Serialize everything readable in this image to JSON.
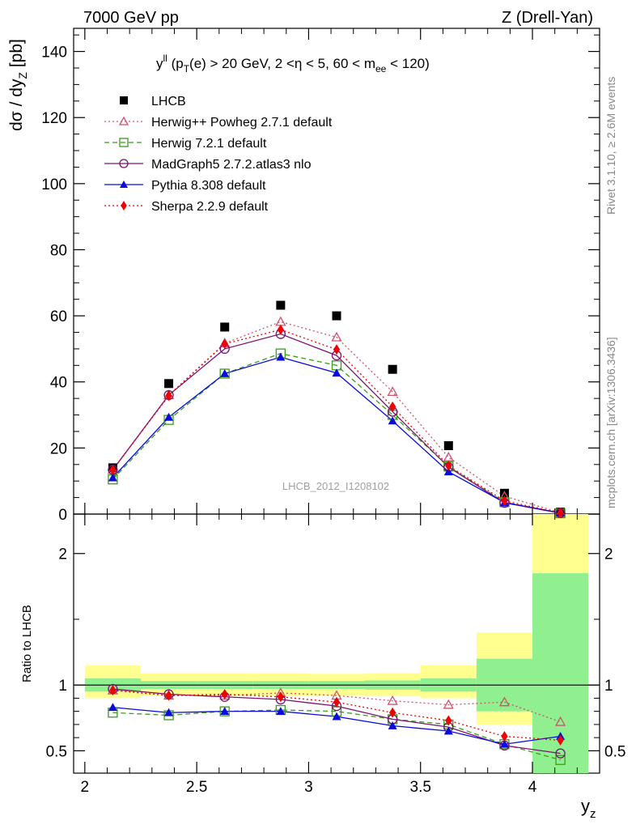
{
  "header": {
    "left": "7000 GeV pp",
    "right": "Z (Drell-Yan)",
    "plot_label": "y",
    "plot_label_sup": "ll",
    "plot_label_rest": " (p",
    "plot_label_sub1": "T",
    "plot_label_rest2": "(e) > 20 GeV, 2 <η < 5, 60 < m",
    "plot_label_sub2": "ee",
    "plot_label_rest3": " < 120)",
    "watermark": "LHCB_2012_I1208102",
    "side_rivet": "Rivet 3.1.10, ≥ 2.6M events",
    "side_mcplots": "mcplots.cern.ch [arXiv:1306.3436]"
  },
  "chart_data": [
    {
      "type": "scatter",
      "ylabel_main": "dσ / dy",
      "ylabel_sub": "Z",
      "ylabel_unit": " [pb]",
      "xlim": [
        1.95,
        4.3
      ],
      "ylim": [
        0,
        147
      ],
      "yticks": [
        0,
        20,
        40,
        60,
        80,
        100,
        120,
        140
      ],
      "x": [
        2.125,
        2.375,
        2.625,
        2.875,
        3.125,
        3.375,
        3.625,
        3.875,
        4.125
      ],
      "series": [
        {
          "name": "LHCB",
          "color": "#000000",
          "marker": "square-filled",
          "line": "none",
          "values": [
            14.0,
            39.5,
            56.6,
            63.2,
            60.0,
            43.8,
            20.7,
            6.3,
            0.6
          ]
        },
        {
          "name": "Herwig++ Powheg 2.7.1 default",
          "color": "#d0536e",
          "marker": "triangle-open",
          "line": "dotted",
          "values": [
            13.4,
            36.0,
            51.7,
            58.2,
            53.5,
            37.0,
            17.2,
            5.4,
            0.43
          ]
        },
        {
          "name": "Herwig 7.2.1 default",
          "color": "#3a9b1c",
          "marker": "square-open",
          "line": "dashed",
          "values": [
            10.5,
            28.5,
            42.5,
            48.6,
            45.0,
            30.0,
            14.4,
            3.6,
            0.25
          ]
        },
        {
          "name": "MadGraph5 2.7.2.atlas3 nlo",
          "color": "#7b1173",
          "marker": "circle-open",
          "line": "solid",
          "values": [
            13.4,
            36.0,
            50.0,
            54.5,
            48.0,
            31.0,
            14.2,
            3.4,
            0.29
          ]
        },
        {
          "name": "Pythia 8.308 default",
          "color": "#0a0adc",
          "marker": "triangle-filled",
          "line": "solid",
          "values": [
            11.0,
            29.3,
            42.5,
            47.5,
            42.7,
            28.2,
            12.8,
            3.5,
            0.36
          ]
        },
        {
          "name": "Sherpa 2.2.9 default",
          "color": "#f00000",
          "marker": "diamond-filled",
          "line": "dotted",
          "values": [
            13.4,
            35.8,
            51.5,
            55.8,
            49.8,
            32.5,
            14.6,
            4.0,
            0.35
          ]
        }
      ]
    },
    {
      "type": "scatter",
      "ylabel": "Ratio to LHCB",
      "xlabel_main": "y",
      "xlabel_sub": "z",
      "xlim": [
        1.95,
        4.3
      ],
      "ylim": [
        0.33,
        2.3
      ],
      "xticks": [
        2,
        2.5,
        3,
        3.5,
        4
      ],
      "xticklabels": [
        "2",
        "2.5",
        "3",
        "3.5",
        "4"
      ],
      "yticks": [
        0.5,
        1,
        2
      ],
      "yticklabels": [
        "0.5",
        "1",
        "2"
      ],
      "bands": {
        "bins": [
          [
            2.0,
            2.25
          ],
          [
            2.25,
            2.5
          ],
          [
            2.5,
            2.75
          ],
          [
            2.75,
            3.0
          ],
          [
            3.0,
            3.25
          ],
          [
            3.25,
            3.5
          ],
          [
            3.5,
            3.75
          ],
          [
            3.75,
            4.0
          ],
          [
            4.0,
            4.25
          ]
        ],
        "stat_color": "#90f090",
        "total_color": "#ffff90",
        "stat": [
          [
            0.95,
            1.05
          ],
          [
            0.97,
            1.03
          ],
          [
            0.97,
            1.03
          ],
          [
            0.97,
            1.03
          ],
          [
            0.97,
            1.03
          ],
          [
            0.965,
            1.035
          ],
          [
            0.95,
            1.05
          ],
          [
            0.8,
            1.2
          ],
          [
            0.33,
            1.85
          ]
        ],
        "total": [
          [
            0.9,
            1.15
          ],
          [
            0.92,
            1.09
          ],
          [
            0.92,
            1.09
          ],
          [
            0.92,
            1.09
          ],
          [
            0.92,
            1.085
          ],
          [
            0.915,
            1.09
          ],
          [
            0.9,
            1.15
          ],
          [
            0.7,
            1.4
          ],
          [
            0.33,
            2.3
          ]
        ]
      },
      "series": [
        {
          "name": "Herwig++ Powheg 2.7.1 default",
          "color": "#d0536e",
          "line": "dotted",
          "values": [
            0.96,
            0.92,
            0.92,
            0.94,
            0.92,
            0.88,
            0.85,
            0.87,
            0.72
          ]
        },
        {
          "name": "Herwig 7.2.1 default",
          "color": "#3a9b1c",
          "line": "dashed",
          "values": [
            0.79,
            0.77,
            0.8,
            0.81,
            0.8,
            0.74,
            0.7,
            0.55,
            0.43
          ]
        },
        {
          "name": "MadGraph5 2.7.2.atlas3 nlo",
          "color": "#7b1173",
          "line": "solid",
          "values": [
            0.97,
            0.93,
            0.91,
            0.89,
            0.84,
            0.74,
            0.68,
            0.54,
            0.48
          ]
        },
        {
          "name": "Pythia 8.308 default",
          "color": "#0a0adc",
          "line": "solid",
          "values": [
            0.83,
            0.79,
            0.8,
            0.8,
            0.76,
            0.69,
            0.65,
            0.55,
            0.61
          ]
        },
        {
          "name": "Sherpa 2.2.9 default",
          "color": "#f00000",
          "line": "dotted",
          "values": [
            0.96,
            0.92,
            0.93,
            0.91,
            0.87,
            0.79,
            0.73,
            0.61,
            0.58
          ]
        }
      ]
    }
  ]
}
